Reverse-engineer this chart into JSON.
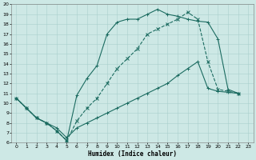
{
  "xlabel": "Humidex (Indice chaleur)",
  "ylabel": "",
  "xlim": [
    -0.5,
    23.5
  ],
  "ylim": [
    6,
    20
  ],
  "xticks": [
    0,
    1,
    2,
    3,
    4,
    5,
    6,
    7,
    8,
    9,
    10,
    11,
    12,
    13,
    14,
    15,
    16,
    17,
    18,
    19,
    20,
    21,
    22,
    23
  ],
  "yticks": [
    6,
    7,
    8,
    9,
    10,
    11,
    12,
    13,
    14,
    15,
    16,
    17,
    18,
    19,
    20
  ],
  "bg_color": "#cde8e5",
  "grid_color": "#aacfcc",
  "line_color": "#1b6b60",
  "line1_x": [
    0,
    1,
    2,
    3,
    4,
    5,
    6,
    7,
    8,
    9,
    10,
    11,
    12,
    13,
    14,
    15,
    16,
    17,
    18,
    19,
    20,
    21,
    22
  ],
  "line1_y": [
    10.5,
    9.5,
    8.5,
    8.0,
    7.2,
    6.2,
    10.8,
    12.5,
    13.8,
    17.0,
    18.2,
    18.5,
    18.5,
    19.0,
    19.5,
    19.0,
    18.8,
    18.5,
    18.3,
    18.2,
    16.5,
    11.4,
    11.0
  ],
  "line1_style": "-",
  "line1_marker": "+",
  "line2_x": [
    0,
    1,
    2,
    3,
    4,
    5,
    6,
    7,
    8,
    9,
    10,
    11,
    12,
    13,
    14,
    15,
    16,
    17,
    18,
    19,
    20,
    21,
    22
  ],
  "line2_y": [
    10.5,
    9.5,
    8.5,
    8.0,
    7.2,
    6.2,
    8.2,
    9.5,
    10.5,
    12.0,
    13.5,
    14.5,
    15.5,
    17.0,
    17.5,
    18.0,
    18.5,
    19.2,
    18.5,
    14.2,
    11.4,
    11.2,
    11.0
  ],
  "line2_style": "--",
  "line2_marker": "x",
  "line3_x": [
    0,
    1,
    2,
    3,
    4,
    5,
    6,
    7,
    8,
    9,
    10,
    11,
    12,
    13,
    14,
    15,
    16,
    17,
    18,
    19,
    20,
    21,
    22
  ],
  "line3_y": [
    10.5,
    9.5,
    8.5,
    8.0,
    7.5,
    6.5,
    7.5,
    8.0,
    8.5,
    9.0,
    9.5,
    10.0,
    10.5,
    11.0,
    11.5,
    12.0,
    12.8,
    13.5,
    14.2,
    11.5,
    11.2,
    11.1,
    11.0
  ],
  "line3_style": "-",
  "line3_marker": "+"
}
